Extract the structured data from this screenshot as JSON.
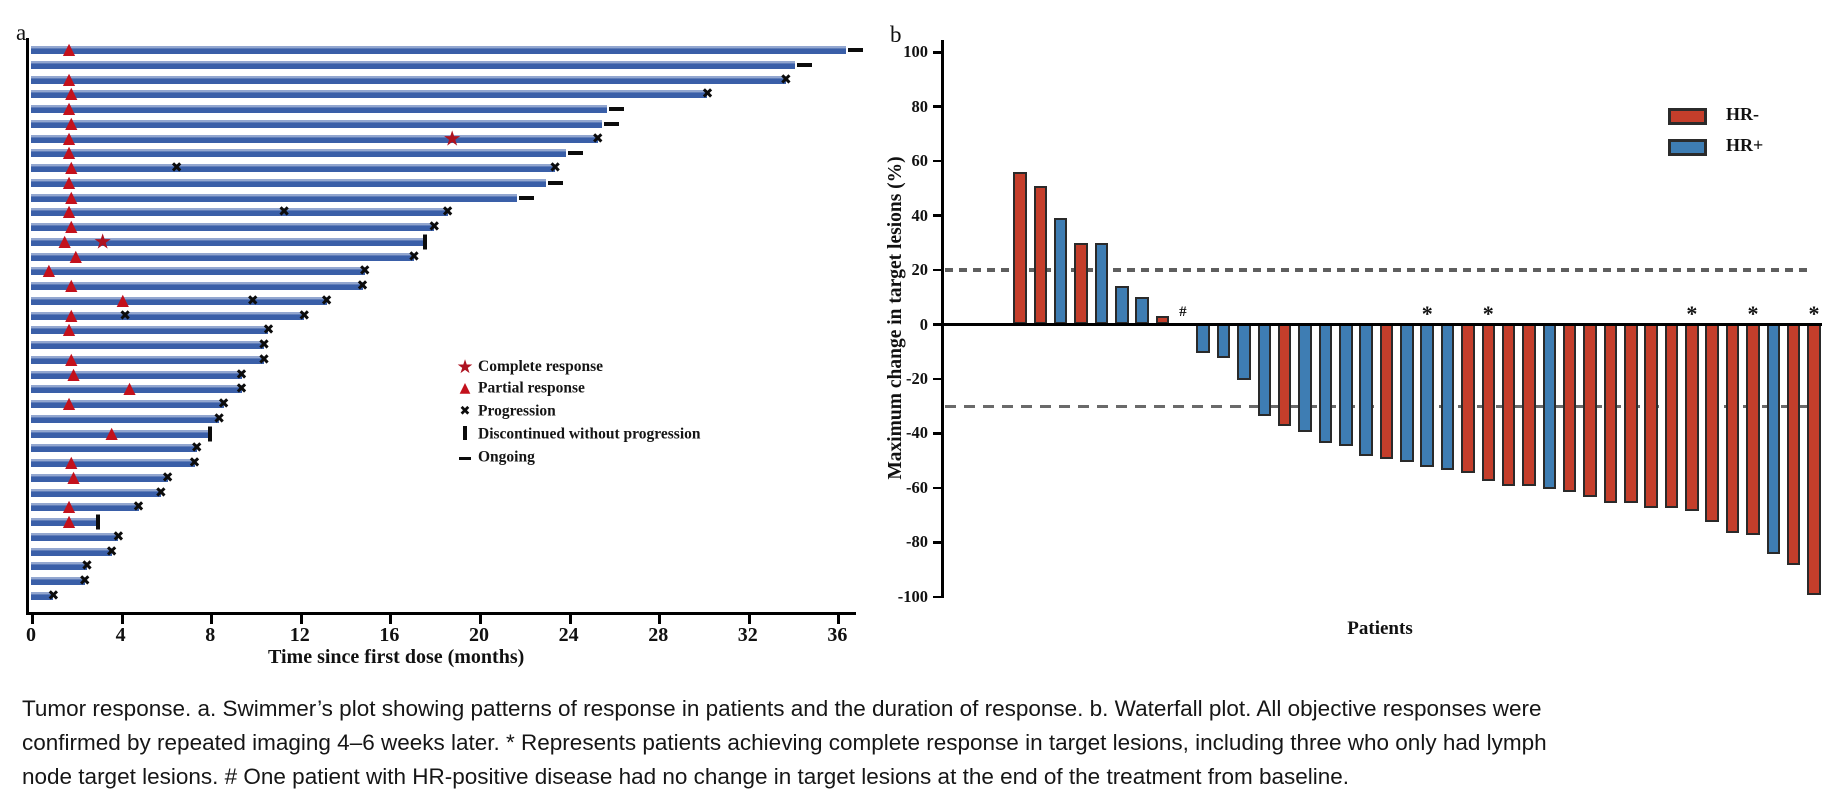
{
  "panel_labels": {
    "a": "a",
    "b": "b"
  },
  "colors": {
    "swimmer_bar": "#3a5fa8",
    "hr_neg": "#c43e2b",
    "hr_pos": "#3e7db3",
    "pr_triangle": "#c3111c",
    "cr_star": "#ad1220",
    "marker_x": "#0c0c0c",
    "ref_line": "#5e5e5e"
  },
  "caption_lines": [
    "Tumor response. a. Swimmer’s plot showing patterns of response in patients and the duration of response. b. Waterfall plot. All objective responses were",
    "confirmed by repeated imaging 4–6 weeks later. * Represents patients achieving complete response in target lesions, including three who only had lymph",
    "node target lesions. # One patient with HR-positive disease had no change in target lesions at the end of the treatment from baseline."
  ],
  "chart_data": [
    {
      "type": "swimmer",
      "panel": "a",
      "xlabel": "Time since first dose (months)",
      "xlim": [
        0,
        37
      ],
      "x_ticks": [
        0,
        4,
        8,
        12,
        16,
        20,
        24,
        28,
        32,
        36
      ],
      "legend": [
        {
          "symbol": "star",
          "label": "Complete response"
        },
        {
          "symbol": "triangle",
          "label": "Partial response"
        },
        {
          "symbol": "x",
          "label": "Progression"
        },
        {
          "symbol": "bar",
          "label": "Discontinued without progression"
        },
        {
          "symbol": "dash",
          "label": "Ongoing"
        }
      ],
      "patients": [
        {
          "duration": 36.4,
          "end": "ongoing",
          "pr": [
            1.7
          ]
        },
        {
          "duration": 34.1,
          "end": "ongoing"
        },
        {
          "duration": 33.7,
          "end": "progression",
          "pr": [
            1.7
          ]
        },
        {
          "duration": 30.2,
          "end": "progression",
          "pr": [
            1.8
          ]
        },
        {
          "duration": 25.7,
          "end": "ongoing",
          "pr": [
            1.7
          ]
        },
        {
          "duration": 25.5,
          "end": "ongoing",
          "pr": [
            1.8
          ]
        },
        {
          "duration": 25.3,
          "end": "progression",
          "pr": [
            1.7
          ],
          "cr": [
            18.8
          ]
        },
        {
          "duration": 23.9,
          "end": "ongoing",
          "pr": [
            1.7
          ]
        },
        {
          "duration": 23.4,
          "end": "progression",
          "pr": [
            1.8
          ],
          "xmid": [
            6.5
          ]
        },
        {
          "duration": 23.0,
          "end": "ongoing",
          "pr": [
            1.7
          ]
        },
        {
          "duration": 21.7,
          "end": "ongoing",
          "pr": [
            1.8
          ]
        },
        {
          "duration": 18.6,
          "end": "progression",
          "pr": [
            1.7
          ],
          "xmid": [
            11.3
          ]
        },
        {
          "duration": 18.0,
          "end": "progression",
          "pr": [
            1.8
          ]
        },
        {
          "duration": 17.5,
          "end": "discontinued",
          "pr": [
            1.5
          ],
          "cr": [
            3.2
          ]
        },
        {
          "duration": 17.1,
          "end": "progression",
          "pr": [
            2.0
          ]
        },
        {
          "duration": 14.9,
          "end": "progression",
          "pr": [
            0.8
          ]
        },
        {
          "duration": 14.8,
          "end": "progression",
          "pr": [
            1.8
          ]
        },
        {
          "duration": 13.2,
          "end": "progression",
          "pr": [
            4.1
          ],
          "xmid": [
            9.9
          ]
        },
        {
          "duration": 12.2,
          "end": "progression",
          "pr": [
            1.8
          ],
          "xmid": [
            4.2
          ]
        },
        {
          "duration": 10.6,
          "end": "progression",
          "pr": [
            1.7
          ]
        },
        {
          "duration": 10.4,
          "end": "progression"
        },
        {
          "duration": 10.4,
          "end": "progression",
          "pr": [
            1.8
          ]
        },
        {
          "duration": 9.4,
          "end": "progression",
          "pr": [
            1.9
          ]
        },
        {
          "duration": 9.4,
          "end": "progression",
          "pr": [
            4.4
          ]
        },
        {
          "duration": 8.6,
          "end": "progression",
          "pr": [
            1.7
          ]
        },
        {
          "duration": 8.4,
          "end": "progression"
        },
        {
          "duration": 7.9,
          "end": "discontinued",
          "pr": [
            3.6
          ]
        },
        {
          "duration": 7.4,
          "end": "progression"
        },
        {
          "duration": 7.3,
          "end": "progression",
          "pr": [
            1.8
          ]
        },
        {
          "duration": 6.1,
          "end": "progression",
          "pr": [
            1.9
          ]
        },
        {
          "duration": 5.8,
          "end": "progression"
        },
        {
          "duration": 4.8,
          "end": "progression",
          "pr": [
            1.7
          ]
        },
        {
          "duration": 2.9,
          "end": "discontinued",
          "pr": [
            1.7
          ]
        },
        {
          "duration": 3.9,
          "end": "progression"
        },
        {
          "duration": 3.6,
          "end": "progression"
        },
        {
          "duration": 2.5,
          "end": "progression"
        },
        {
          "duration": 2.4,
          "end": "progression"
        },
        {
          "duration": 1.0,
          "end": "progression"
        }
      ]
    },
    {
      "type": "bar",
      "panel": "b",
      "xlabel": "Patients",
      "ylabel": "Maximum change in target lesions (%)",
      "ylim": [
        -100,
        100
      ],
      "y_ticks": [
        100,
        80,
        60,
        40,
        20,
        0,
        -20,
        -40,
        -60,
        -80,
        -100
      ],
      "reference_lines": [
        20,
        -30
      ],
      "legend": [
        {
          "label": "HR-",
          "group": "HR-"
        },
        {
          "label": "HR+",
          "group": "HR+"
        }
      ],
      "bars": [
        {
          "value": 56,
          "group": "HR-"
        },
        {
          "value": 51,
          "group": "HR-"
        },
        {
          "value": 39,
          "group": "HR+"
        },
        {
          "value": 30,
          "group": "HR-"
        },
        {
          "value": 30,
          "group": "HR+"
        },
        {
          "value": 14,
          "group": "HR+"
        },
        {
          "value": 10,
          "group": "HR+"
        },
        {
          "value": 3,
          "group": "HR-"
        },
        {
          "value": 0,
          "group": "HR+",
          "note": "#"
        },
        {
          "value": -11,
          "group": "HR+"
        },
        {
          "value": -13,
          "group": "HR+"
        },
        {
          "value": -21,
          "group": "HR+"
        },
        {
          "value": -34,
          "group": "HR+"
        },
        {
          "value": -38,
          "group": "HR-"
        },
        {
          "value": -40,
          "group": "HR+"
        },
        {
          "value": -44,
          "group": "HR+"
        },
        {
          "value": -45,
          "group": "HR+"
        },
        {
          "value": -49,
          "group": "HR+"
        },
        {
          "value": -50,
          "group": "HR-"
        },
        {
          "value": -51,
          "group": "HR+"
        },
        {
          "value": -53,
          "group": "HR+",
          "note": "*"
        },
        {
          "value": -54,
          "group": "HR+"
        },
        {
          "value": -55,
          "group": "HR-"
        },
        {
          "value": -58,
          "group": "HR-",
          "note": "*"
        },
        {
          "value": -60,
          "group": "HR-"
        },
        {
          "value": -60,
          "group": "HR-"
        },
        {
          "value": -61,
          "group": "HR+"
        },
        {
          "value": -62,
          "group": "HR-"
        },
        {
          "value": -64,
          "group": "HR-"
        },
        {
          "value": -66,
          "group": "HR-"
        },
        {
          "value": -66,
          "group": "HR-"
        },
        {
          "value": -68,
          "group": "HR-"
        },
        {
          "value": -68,
          "group": "HR-"
        },
        {
          "value": -69,
          "group": "HR-",
          "note": "*"
        },
        {
          "value": -73,
          "group": "HR-"
        },
        {
          "value": -77,
          "group": "HR-"
        },
        {
          "value": -78,
          "group": "HR-",
          "note": "*"
        },
        {
          "value": -85,
          "group": "HR+"
        },
        {
          "value": -89,
          "group": "HR-"
        },
        {
          "value": -100,
          "group": "HR-",
          "note": "*"
        }
      ]
    }
  ]
}
